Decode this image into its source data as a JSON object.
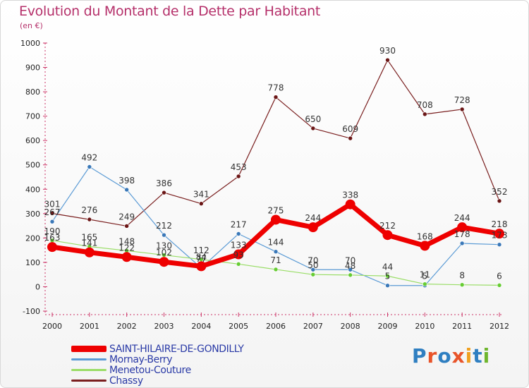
{
  "title": "Evolution du Montant de la Dette par Habitant",
  "subtitle": "(en €)",
  "logo": {
    "text": "Proxiti",
    "colors": [
      "#2f7fc1",
      "#e8542a",
      "#2f7fc1",
      "#e8542a",
      "#f0a020",
      "#2f7fc1",
      "#6fb62e"
    ]
  },
  "chart_data": {
    "type": "line",
    "x": [
      "2000",
      "2001",
      "2002",
      "2003",
      "2004",
      "2005",
      "2006",
      "2007",
      "2008",
      "2009",
      "2010",
      "2011",
      "2012"
    ],
    "y_ticks": [
      "-100",
      "0",
      "100",
      "200",
      "300",
      "400",
      "500",
      "600",
      "700",
      "800",
      "900",
      "1000"
    ],
    "ylim": [
      -100,
      1000
    ],
    "grid": false,
    "legend_position": "bottom-left",
    "series": [
      {
        "name": "Chassy",
        "color": "#7a1f1f",
        "point_color": "#6a1515",
        "values": [
          301,
          276,
          249,
          386,
          341,
          453,
          778,
          650,
          609,
          930,
          708,
          728,
          352
        ],
        "labels": [
          "301",
          "276",
          "249",
          "386",
          "341",
          "453",
          "778",
          "650",
          "609",
          "930",
          "708",
          "728",
          "352"
        ]
      },
      {
        "name": "Mornay-Berry",
        "color": "#5b9bd5",
        "point_color": "#3a78b8",
        "values": [
          267,
          492,
          398,
          212,
          77,
          217,
          144,
          70,
          70,
          5,
          5,
          178,
          173
        ],
        "labels": [
          "267",
          "492",
          "398",
          "212",
          "77",
          "217",
          "144",
          "70",
          "70",
          "5",
          "5",
          "178",
          "173"
        ]
      },
      {
        "name": "Menetou-Couture",
        "color": "#99dd66",
        "point_color": "#66cc33",
        "values": [
          190,
          165,
          148,
          130,
          112,
          93,
          71,
          50,
          48,
          44,
          11,
          8,
          6
        ],
        "labels": [
          "190",
          "165",
          "148",
          "130",
          "112",
          "93",
          "71",
          "50",
          "48",
          "44",
          "11",
          "8",
          "6"
        ]
      },
      {
        "name": "SAINT-HILAIRE-DE-GONDILLY",
        "color": "#ee0000",
        "point_color": "#ee0000",
        "values": [
          163,
          141,
          122,
          102,
          84,
          133,
          275,
          244,
          338,
          212,
          168,
          244,
          218
        ],
        "labels": [
          "163",
          "141",
          "122",
          "102",
          "84",
          "133",
          "275",
          "244",
          "338",
          "212",
          "168",
          "244",
          "218"
        ]
      }
    ]
  },
  "legend": [
    {
      "label": "SAINT-HILAIRE-DE-GONDILLY",
      "color": "#ee0000",
      "text_color": "#2a3aa6"
    },
    {
      "label": "Mornay-Berry",
      "color": "#5b9bd5",
      "text_color": "#2a3aa6"
    },
    {
      "label": "Menetou-Couture",
      "color": "#99dd66",
      "text_color": "#2a3aa6"
    },
    {
      "label": "Chassy",
      "color": "#7a1f1f",
      "text_color": "#2a3aa6"
    }
  ]
}
